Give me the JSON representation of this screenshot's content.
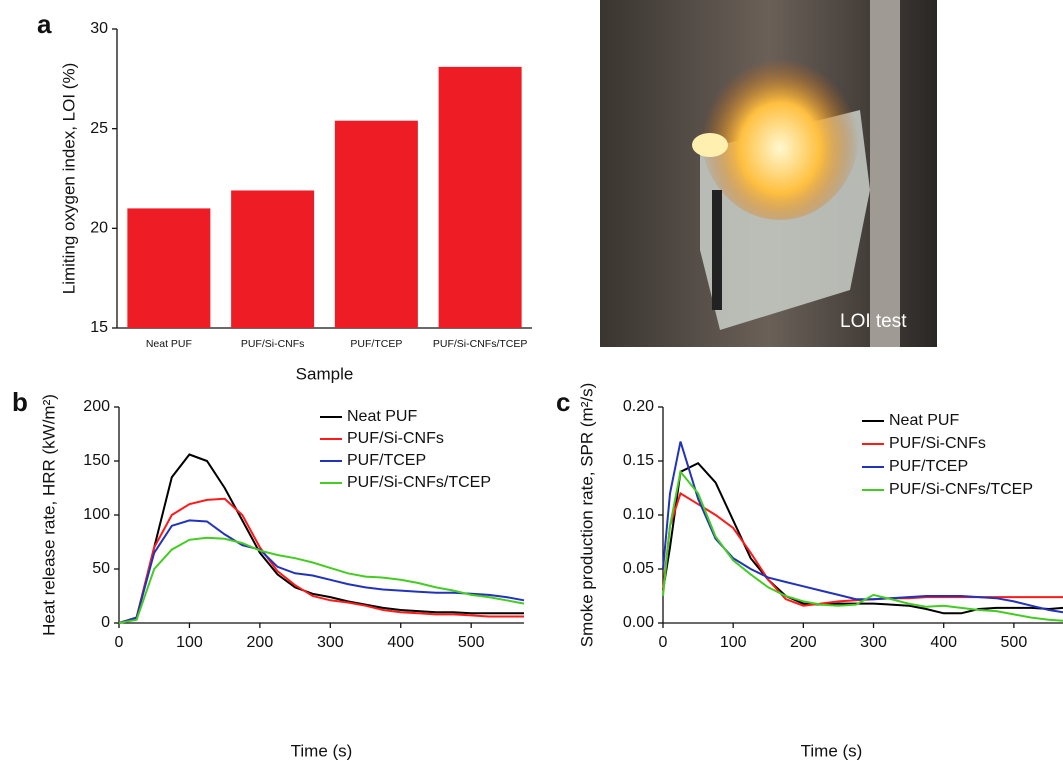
{
  "chart_data": [
    {
      "type": "bar",
      "panel": "a",
      "xlabel": "Sample",
      "ylabel": "Limiting oxygen index, LOI (%)",
      "categories": [
        "Neat PUF",
        "PUF/Si-CNFs",
        "PUF/TCEP",
        "PUF/Si-CNFs/TCEP"
      ],
      "values": [
        21.0,
        21.9,
        25.4,
        28.1
      ],
      "color": "#ee1c25",
      "ylim": [
        15,
        30
      ],
      "yticks": [
        15,
        20,
        25,
        30
      ]
    },
    {
      "type": "line",
      "panel": "b",
      "xlabel": "Time (s)",
      "ylabel": "Heat release rate, HRR (kW/m²)",
      "x": [
        0,
        25,
        50,
        75,
        100,
        125,
        150,
        175,
        200,
        225,
        250,
        275,
        300,
        325,
        350,
        375,
        400,
        425,
        450,
        475,
        500,
        525,
        550,
        575
      ],
      "series": [
        {
          "name": "Neat PUF",
          "color": "#000000",
          "values": [
            0,
            5,
            70,
            135,
            156,
            150,
            125,
            95,
            65,
            45,
            33,
            27,
            24,
            20,
            17,
            14,
            12,
            11,
            10,
            10,
            9,
            9,
            9,
            9
          ]
        },
        {
          "name": "PUF/Si-CNFs",
          "color": "#ff1a1a",
          "values": [
            0,
            5,
            70,
            100,
            110,
            114,
            115,
            100,
            70,
            48,
            35,
            25,
            21,
            19,
            16,
            12,
            10,
            9,
            8,
            8,
            7,
            6,
            6,
            6
          ]
        },
        {
          "name": "PUF/TCEP",
          "color": "#2233bb",
          "values": [
            0,
            5,
            65,
            90,
            95,
            94,
            82,
            72,
            68,
            52,
            46,
            44,
            40,
            36,
            33,
            31,
            30,
            29,
            28,
            28,
            27,
            26,
            24,
            21
          ]
        },
        {
          "name": "PUF/Si-CNFs/TCEP",
          "color": "#44cc22",
          "values": [
            0,
            3,
            50,
            68,
            77,
            79,
            78,
            74,
            67,
            63,
            60,
            56,
            51,
            46,
            43,
            42,
            40,
            37,
            33,
            30,
            26,
            24,
            21,
            18
          ]
        }
      ],
      "xlim": [
        0,
        575
      ],
      "xticks": [
        0,
        100,
        200,
        300,
        400,
        500
      ],
      "ylim": [
        0,
        200
      ],
      "yticks": [
        0,
        50,
        100,
        150,
        200
      ]
    },
    {
      "type": "line",
      "panel": "c",
      "xlabel": "Time (s)",
      "ylabel": "Smoke production rate, SPR (m²/s)",
      "x": [
        0,
        10,
        25,
        50,
        75,
        100,
        125,
        150,
        175,
        200,
        225,
        250,
        275,
        300,
        325,
        350,
        375,
        400,
        425,
        450,
        475,
        500,
        525,
        550,
        570
      ],
      "series": [
        {
          "name": "Neat PUF",
          "color": "#000000",
          "values": [
            0.03,
            0.07,
            0.14,
            0.148,
            0.13,
            0.095,
            0.06,
            0.04,
            0.025,
            0.018,
            0.017,
            0.018,
            0.018,
            0.018,
            0.017,
            0.016,
            0.013,
            0.009,
            0.009,
            0.013,
            0.014,
            0.014,
            0.014,
            0.013,
            0.014
          ]
        },
        {
          "name": "PUF/Si-CNFs",
          "color": "#ff1a1a",
          "values": [
            0.03,
            0.09,
            0.12,
            0.11,
            0.1,
            0.088,
            0.065,
            0.04,
            0.022,
            0.016,
            0.018,
            0.02,
            0.021,
            0.022,
            0.023,
            0.023,
            0.024,
            0.024,
            0.024,
            0.024,
            0.024,
            0.024,
            0.024,
            0.024,
            0.024
          ]
        },
        {
          "name": "PUF/TCEP",
          "color": "#2233bb",
          "values": [
            0.05,
            0.12,
            0.168,
            0.115,
            0.078,
            0.06,
            0.05,
            0.042,
            0.038,
            0.034,
            0.03,
            0.026,
            0.022,
            0.022,
            0.023,
            0.024,
            0.025,
            0.025,
            0.025,
            0.024,
            0.023,
            0.02,
            0.016,
            0.012,
            0.01
          ]
        },
        {
          "name": "PUF/Si-CNFs/TCEP",
          "color": "#44cc22",
          "values": [
            0.025,
            0.09,
            0.14,
            0.12,
            0.08,
            0.058,
            0.045,
            0.033,
            0.025,
            0.02,
            0.017,
            0.016,
            0.017,
            0.026,
            0.022,
            0.018,
            0.015,
            0.016,
            0.014,
            0.012,
            0.011,
            0.008,
            0.005,
            0.003,
            0.002
          ]
        }
      ],
      "xlim": [
        0,
        570
      ],
      "xticks": [
        0,
        100,
        200,
        300,
        400,
        500
      ],
      "ylim": [
        0,
        0.2
      ],
      "yticks": [
        {
          "value": 0,
          "label": "0.00"
        },
        {
          "value": 0.05,
          "label": "0.05"
        },
        {
          "value": 0.1,
          "label": "0.10"
        },
        {
          "value": 0.15,
          "label": "0.15"
        },
        {
          "value": 0.2,
          "label": "0.20"
        }
      ]
    }
  ],
  "photo": {
    "caption": "LOI test"
  }
}
